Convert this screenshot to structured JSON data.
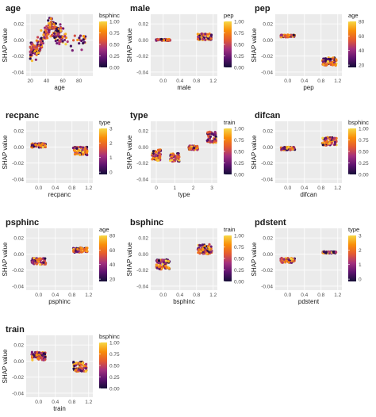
{
  "colors": {
    "panel_bg": "#ebebeb",
    "grid": "#ffffff",
    "text": "#1a1a1a",
    "tick_text": "#4d4d4d",
    "palette_stops": [
      "#000004",
      "#3b0f70",
      "#8c2981",
      "#de4968",
      "#fe9f6d",
      "#fcfdbf"
    ],
    "palette_stops_plasma": [
      "#150e37",
      "#5c126e",
      "#a3307e",
      "#e45a31",
      "#f98e09",
      "#f6d746"
    ]
  },
  "common": {
    "ylabel": "SHAP value",
    "yticks": [
      0.02,
      0.0,
      -0.02,
      -0.04
    ],
    "ytick_labels": [
      "0.02",
      "0.00",
      "-0.02",
      "-0.04"
    ],
    "ylim": [
      -0.045,
      0.032
    ]
  },
  "chart_data": [
    {
      "type": "scatter",
      "title": "age",
      "xlabel": "age",
      "xlim": [
        15,
        97
      ],
      "xticks": [
        20,
        40,
        60,
        80
      ],
      "xtick_labels": [
        "20",
        "40",
        "60",
        "80"
      ],
      "legend_title": "bsphinc",
      "legend_ticks": [
        "1.00",
        "0.75",
        "0.50",
        "0.25",
        "0.00"
      ],
      "points": {
        "kind": "age_curve",
        "x_range": [
          20,
          88
        ],
        "curve": [
          [
            20,
            -0.015
          ],
          [
            30,
            -0.01
          ],
          [
            40,
            0.01
          ],
          [
            45,
            0.018
          ],
          [
            50,
            0.012
          ],
          [
            60,
            0.005
          ],
          [
            70,
            0.0
          ],
          [
            88,
            0.0
          ]
        ],
        "spread": 0.012,
        "count": 260
      }
    },
    {
      "type": "scatter",
      "title": "male",
      "xlabel": "male",
      "xlim": [
        -0.3,
        1.3
      ],
      "xticks": [
        0,
        0.4,
        0.8,
        1.2
      ],
      "xtick_labels": [
        "0.0",
        "0.4",
        "0.8",
        "1.2"
      ],
      "legend_title": "pep",
      "legend_ticks": [
        "1.00",
        "0.75",
        "0.50",
        "0.25",
        "0.00"
      ],
      "points": {
        "kind": "two_group",
        "groups": [
          [
            0,
            0.0,
            0.001
          ],
          [
            1,
            0.004,
            0.004
          ]
        ],
        "count": 130
      }
    },
    {
      "type": "scatter",
      "title": "pep",
      "xlabel": "pep",
      "xlim": [
        -0.3,
        1.3
      ],
      "xticks": [
        0,
        0.4,
        0.8,
        1.2
      ],
      "xtick_labels": [
        "0.0",
        "0.4",
        "0.8",
        "1.2"
      ],
      "legend_title": "age",
      "legend_ticks": [
        "80",
        "60",
        "40",
        "20"
      ],
      "points": {
        "kind": "two_group",
        "groups": [
          [
            0,
            0.005,
            0.0015
          ],
          [
            1,
            -0.027,
            0.005
          ]
        ],
        "count": 130
      }
    },
    {
      "type": "scatter",
      "title": "recpanc",
      "xlabel": "recpanc",
      "xlim": [
        -0.3,
        1.3
      ],
      "xticks": [
        0,
        0.4,
        0.8,
        1.2
      ],
      "xtick_labels": [
        "0.0",
        "0.4",
        "0.8",
        "1.2"
      ],
      "legend_title": "type",
      "legend_ticks": [
        "3",
        "2",
        "1",
        "0"
      ],
      "points": {
        "kind": "two_group",
        "groups": [
          [
            0,
            0.002,
            0.0025
          ],
          [
            1,
            -0.005,
            0.005
          ]
        ],
        "count": 130
      }
    },
    {
      "type": "scatter",
      "title": "type",
      "xlabel": "type",
      "xlim": [
        -0.3,
        3.3
      ],
      "xticks": [
        0,
        1,
        2,
        3
      ],
      "xtick_labels": [
        "0",
        "1",
        "2",
        "3"
      ],
      "legend_title": "train",
      "legend_ticks": [
        "1.00",
        "0.75",
        "0.50",
        "0.25",
        "0.00"
      ],
      "points": {
        "kind": "multi_group",
        "groups": [
          [
            0,
            -0.01,
            0.007
          ],
          [
            1,
            -0.013,
            0.005
          ],
          [
            2,
            -0.001,
            0.0025
          ],
          [
            3,
            0.012,
            0.007
          ]
        ],
        "count": 60
      }
    },
    {
      "type": "scatter",
      "title": "difcan",
      "xlabel": "difcan",
      "xlim": [
        -0.3,
        1.3
      ],
      "xticks": [
        0,
        0.4,
        0.8,
        1.2
      ],
      "xtick_labels": [
        "0.0",
        "0.4",
        "0.8",
        "1.2"
      ],
      "legend_title": "bsphinc",
      "legend_ticks": [
        "1.00",
        "0.75",
        "0.50",
        "0.25",
        "0.00"
      ],
      "points": {
        "kind": "two_group",
        "groups": [
          [
            0,
            -0.002,
            0.002
          ],
          [
            1,
            0.007,
            0.005
          ]
        ],
        "count": 130
      }
    },
    {
      "type": "scatter",
      "title": "psphinc",
      "xlabel": "psphinc",
      "xlim": [
        -0.3,
        1.3
      ],
      "xticks": [
        0,
        0.4,
        0.8,
        1.2
      ],
      "xtick_labels": [
        "0.0",
        "0.4",
        "0.8",
        "1.2"
      ],
      "legend_title": "age",
      "legend_ticks": [
        "80",
        "60",
        "40",
        "20"
      ],
      "points": {
        "kind": "two_group",
        "groups": [
          [
            0,
            -0.009,
            0.004
          ],
          [
            1,
            0.005,
            0.003
          ]
        ],
        "count": 130
      }
    },
    {
      "type": "scatter",
      "title": "bsphinc",
      "xlabel": "bsphinc",
      "xlim": [
        -0.3,
        1.3
      ],
      "xticks": [
        0,
        0.4,
        0.8,
        1.2
      ],
      "xtick_labels": [
        "0.0",
        "0.4",
        "0.8",
        "1.2"
      ],
      "legend_title": "train",
      "legend_ticks": [
        "1.00",
        "0.75",
        "0.50",
        "0.25",
        "0.00"
      ],
      "points": {
        "kind": "two_group",
        "groups": [
          [
            0,
            -0.013,
            0.006
          ],
          [
            1,
            0.006,
            0.006
          ]
        ],
        "count": 150
      }
    },
    {
      "type": "scatter",
      "title": "pdstent",
      "xlabel": "pdstent",
      "xlim": [
        -0.3,
        1.3
      ],
      "xticks": [
        0,
        0.4,
        0.8,
        1.2
      ],
      "xtick_labels": [
        "0.0",
        "0.4",
        "0.8",
        "1.2"
      ],
      "legend_title": "type",
      "legend_ticks": [
        "3",
        "2",
        "1",
        "0"
      ],
      "points": {
        "kind": "two_group",
        "groups": [
          [
            0,
            -0.008,
            0.003
          ],
          [
            1,
            0.002,
            0.001
          ]
        ],
        "count": 130
      }
    },
    {
      "type": "scatter",
      "title": "train",
      "xlabel": "train",
      "xlim": [
        -0.3,
        1.3
      ],
      "xticks": [
        0,
        0.4,
        0.8,
        1.2
      ],
      "xtick_labels": [
        "0.0",
        "0.4",
        "0.8",
        "1.2"
      ],
      "legend_title": "bsphinc",
      "legend_ticks": [
        "1.00",
        "0.75",
        "0.50",
        "0.25",
        "0.00"
      ],
      "points": {
        "kind": "two_group",
        "groups": [
          [
            0,
            0.006,
            0.005
          ],
          [
            1,
            -0.007,
            0.006
          ]
        ],
        "count": 140
      }
    }
  ]
}
